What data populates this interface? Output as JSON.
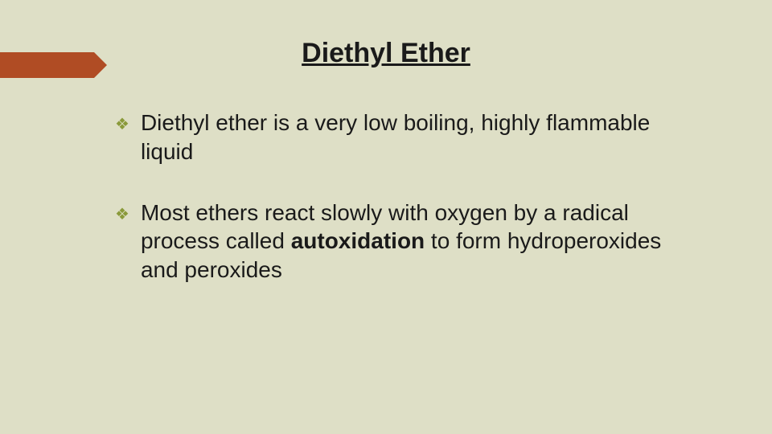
{
  "slide": {
    "background_color": "#dedfc6",
    "title": "Diethyl Ether",
    "title_color": "#1a1a1a",
    "title_fontsize": 34,
    "arrow_color": "#b04c24",
    "bullet_glyph": "❖",
    "bullet_color": "#8a9a3a",
    "text_color": "#1a1a1a",
    "text_fontsize": 28,
    "bullets": [
      {
        "html": "Diethyl ether is a very low boiling, highly flammable liquid"
      },
      {
        "html": "Most ethers react slowly with oxygen by a radical process called <b>autoxidation</b> to form hydroperoxides and peroxides"
      }
    ]
  }
}
